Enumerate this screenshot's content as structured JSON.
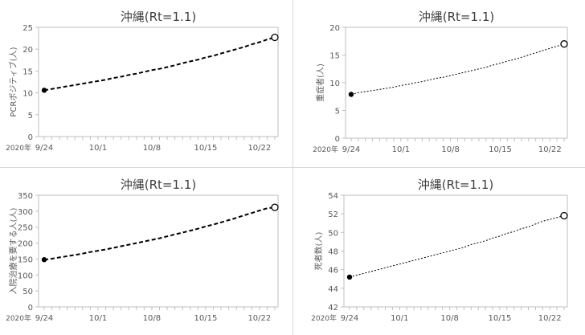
{
  "chart_data": [
    {
      "type": "line",
      "title": "沖縄(Rt=1.1)",
      "xlabel": "",
      "ylabel": "PCRポジティブ(人)",
      "year_label": "2020年",
      "x": [
        "9/24",
        "9/25",
        "9/26",
        "9/27",
        "9/28",
        "9/29",
        "9/30",
        "10/1",
        "10/2",
        "10/3",
        "10/4",
        "10/5",
        "10/6",
        "10/7",
        "10/8",
        "10/9",
        "10/10",
        "10/11",
        "10/12",
        "10/13",
        "10/14",
        "10/15",
        "10/16",
        "10/17",
        "10/18",
        "10/19",
        "10/20",
        "10/21",
        "10/22",
        "10/23",
        "10/24"
      ],
      "xticks": [
        "9/24",
        "10/1",
        "10/8",
        "10/15",
        "10/22"
      ],
      "ylim": [
        0,
        25
      ],
      "yticks": [
        0,
        5,
        10,
        15,
        20,
        25
      ],
      "series": [
        {
          "values": [
            10.6,
            10.9,
            11.2,
            11.5,
            11.8,
            12.1,
            12.4,
            12.7,
            13.0,
            13.4,
            13.7,
            14.1,
            14.4,
            14.8,
            15.2,
            15.5,
            15.9,
            16.3,
            16.8,
            17.2,
            17.6,
            18.1,
            18.5,
            19.0,
            19.5,
            20.0,
            20.5,
            21.1,
            21.6,
            22.2,
            22.7
          ],
          "style": "dashed-bold"
        }
      ],
      "markers": {
        "start": "filled",
        "end": "open"
      }
    },
    {
      "type": "line",
      "title": "沖縄(Rt=1.1)",
      "xlabel": "",
      "ylabel": "重症者(人)",
      "year_label": "2020年",
      "x": [
        "9/24",
        "9/25",
        "9/26",
        "9/27",
        "9/28",
        "9/29",
        "9/30",
        "10/1",
        "10/2",
        "10/3",
        "10/4",
        "10/5",
        "10/6",
        "10/7",
        "10/8",
        "10/9",
        "10/10",
        "10/11",
        "10/12",
        "10/13",
        "10/14",
        "10/15",
        "10/16",
        "10/17",
        "10/18",
        "10/19",
        "10/20",
        "10/21",
        "10/22",
        "10/23",
        "10/24"
      ],
      "xticks": [
        "9/24",
        "10/1",
        "10/8",
        "10/15",
        "10/22"
      ],
      "ylim": [
        0,
        20
      ],
      "yticks": [
        0,
        5,
        10,
        15,
        20
      ],
      "series": [
        {
          "values": [
            7.9,
            8.2,
            8.4,
            8.6,
            8.8,
            9.0,
            9.2,
            9.5,
            9.7,
            10.0,
            10.2,
            10.5,
            10.8,
            11.0,
            11.3,
            11.6,
            11.9,
            12.2,
            12.5,
            12.8,
            13.2,
            13.5,
            13.9,
            14.2,
            14.6,
            15.0,
            15.4,
            15.8,
            16.2,
            16.6,
            17.0
          ],
          "style": "dotted"
        }
      ],
      "markers": {
        "start": "filled",
        "end": "open"
      }
    },
    {
      "type": "line",
      "title": "沖縄(Rt=1.1)",
      "xlabel": "",
      "ylabel": "入院治療を要する人(人)",
      "year_label": "2020年",
      "x": [
        "9/24",
        "9/25",
        "9/26",
        "9/27",
        "9/28",
        "9/29",
        "9/30",
        "10/1",
        "10/2",
        "10/3",
        "10/4",
        "10/5",
        "10/6",
        "10/7",
        "10/8",
        "10/9",
        "10/10",
        "10/11",
        "10/12",
        "10/13",
        "10/14",
        "10/15",
        "10/16",
        "10/17",
        "10/18",
        "10/19",
        "10/20",
        "10/21",
        "10/22",
        "10/23",
        "10/24"
      ],
      "xticks": [
        "9/24",
        "10/1",
        "10/8",
        "10/15",
        "10/22"
      ],
      "ylim": [
        0,
        350
      ],
      "yticks": [
        0,
        50,
        100,
        150,
        200,
        250,
        300,
        350
      ],
      "series": [
        {
          "values": [
            148,
            151,
            155,
            159,
            163,
            167,
            172,
            176,
            180,
            185,
            190,
            195,
            200,
            205,
            210,
            215,
            221,
            227,
            233,
            239,
            245,
            252,
            258,
            265,
            272,
            279,
            287,
            294,
            302,
            309,
            312
          ],
          "style": "dashed-bold"
        }
      ],
      "markers": {
        "start": "filled",
        "end": "open"
      }
    },
    {
      "type": "line",
      "title": "沖縄(Rt=1.1)",
      "xlabel": "",
      "ylabel": "死者数(人)",
      "year_label": "2020年",
      "x": [
        "9/24",
        "9/25",
        "9/26",
        "9/27",
        "9/28",
        "9/29",
        "9/30",
        "10/1",
        "10/2",
        "10/3",
        "10/4",
        "10/5",
        "10/6",
        "10/7",
        "10/8",
        "10/9",
        "10/10",
        "10/11",
        "10/12",
        "10/13",
        "10/14",
        "10/15",
        "10/16",
        "10/17",
        "10/18",
        "10/19",
        "10/20",
        "10/21",
        "10/22",
        "10/23",
        "10/24"
      ],
      "xticks": [
        "9/24",
        "10/1",
        "10/8",
        "10/15",
        "10/22"
      ],
      "ylim": [
        42,
        54
      ],
      "yticks": [
        42,
        44,
        46,
        48,
        50,
        52,
        54
      ],
      "series": [
        {
          "values": [
            45.2,
            45.4,
            45.6,
            45.8,
            46.0,
            46.2,
            46.4,
            46.6,
            46.8,
            47.0,
            47.2,
            47.4,
            47.6,
            47.8,
            48.0,
            48.2,
            48.4,
            48.7,
            48.9,
            49.1,
            49.4,
            49.6,
            49.9,
            50.1,
            50.4,
            50.6,
            50.9,
            51.2,
            51.4,
            51.6,
            51.8
          ],
          "style": "dotted"
        }
      ],
      "markers": {
        "start": "filled",
        "end": "open"
      }
    }
  ]
}
